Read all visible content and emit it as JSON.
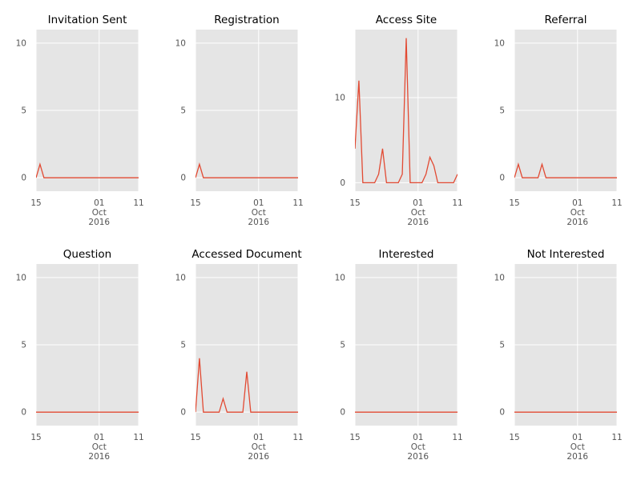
{
  "chart_data": [
    {
      "type": "line",
      "title": "Invitation Sent",
      "color": "#E24A33",
      "background": "#E5E5E5",
      "grid": true,
      "x": [
        "2016-09-15",
        "2016-09-16",
        "2016-09-17",
        "2016-09-18",
        "2016-09-19",
        "2016-09-20",
        "2016-09-21",
        "2016-09-22",
        "2016-09-23",
        "2016-09-24",
        "2016-09-25",
        "2016-09-26",
        "2016-09-27",
        "2016-09-28",
        "2016-09-29",
        "2016-09-30",
        "2016-10-01",
        "2016-10-02",
        "2016-10-03",
        "2016-10-04",
        "2016-10-05",
        "2016-10-06",
        "2016-10-07",
        "2016-10-08",
        "2016-10-09",
        "2016-10-10",
        "2016-10-11"
      ],
      "values": [
        0,
        1,
        0,
        0,
        0,
        0,
        0,
        0,
        0,
        0,
        0,
        0,
        0,
        0,
        0,
        0,
        0,
        0,
        0,
        0,
        0,
        0,
        0,
        0,
        0,
        0,
        0
      ],
      "xlim": [
        "2016-09-15",
        "2016-10-11"
      ],
      "ylim": [
        -1,
        11
      ],
      "yticks": [
        0,
        5,
        10
      ],
      "xtick_labels": [
        {
          "date": "2016-09-15",
          "lines": [
            "15"
          ]
        },
        {
          "date": "2016-10-01",
          "lines": [
            "01",
            "Oct",
            "2016"
          ]
        },
        {
          "date": "2016-10-11",
          "lines": [
            "11"
          ]
        }
      ]
    },
    {
      "type": "line",
      "title": "Registration",
      "color": "#E24A33",
      "background": "#E5E5E5",
      "grid": true,
      "x": [
        "2016-09-15",
        "2016-09-16",
        "2016-09-17",
        "2016-09-18",
        "2016-09-19",
        "2016-09-20",
        "2016-09-21",
        "2016-09-22",
        "2016-09-23",
        "2016-09-24",
        "2016-09-25",
        "2016-09-26",
        "2016-09-27",
        "2016-09-28",
        "2016-09-29",
        "2016-09-30",
        "2016-10-01",
        "2016-10-02",
        "2016-10-03",
        "2016-10-04",
        "2016-10-05",
        "2016-10-06",
        "2016-10-07",
        "2016-10-08",
        "2016-10-09",
        "2016-10-10",
        "2016-10-11"
      ],
      "values": [
        0,
        1,
        0,
        0,
        0,
        0,
        0,
        0,
        0,
        0,
        0,
        0,
        0,
        0,
        0,
        0,
        0,
        0,
        0,
        0,
        0,
        0,
        0,
        0,
        0,
        0,
        0
      ],
      "xlim": [
        "2016-09-15",
        "2016-10-11"
      ],
      "ylim": [
        -1,
        11
      ],
      "yticks": [
        0,
        5,
        10
      ],
      "xtick_labels": [
        {
          "date": "2016-09-15",
          "lines": [
            "15"
          ]
        },
        {
          "date": "2016-10-01",
          "lines": [
            "01",
            "Oct",
            "2016"
          ]
        },
        {
          "date": "2016-10-11",
          "lines": [
            "11"
          ]
        }
      ]
    },
    {
      "type": "line",
      "title": "Access Site",
      "color": "#E24A33",
      "background": "#E5E5E5",
      "grid": true,
      "x": [
        "2016-09-15",
        "2016-09-16",
        "2016-09-17",
        "2016-09-18",
        "2016-09-19",
        "2016-09-20",
        "2016-09-21",
        "2016-09-22",
        "2016-09-23",
        "2016-09-24",
        "2016-09-25",
        "2016-09-26",
        "2016-09-27",
        "2016-09-28",
        "2016-09-29",
        "2016-09-30",
        "2016-10-01",
        "2016-10-02",
        "2016-10-03",
        "2016-10-04",
        "2016-10-05",
        "2016-10-06",
        "2016-10-07",
        "2016-10-08",
        "2016-10-09",
        "2016-10-10",
        "2016-10-11"
      ],
      "values": [
        4,
        12,
        0,
        0,
        0,
        0,
        1,
        4,
        0,
        0,
        0,
        0,
        1,
        17,
        0,
        0,
        0,
        0,
        1,
        3,
        2,
        0,
        0,
        0,
        0,
        0,
        1
      ],
      "xlim": [
        "2016-09-15",
        "2016-10-11"
      ],
      "ylim": [
        -1,
        18
      ],
      "yticks": [
        0,
        10
      ],
      "xtick_labels": [
        {
          "date": "2016-09-15",
          "lines": [
            "15"
          ]
        },
        {
          "date": "2016-10-01",
          "lines": [
            "01",
            "Oct",
            "2016"
          ]
        },
        {
          "date": "2016-10-11",
          "lines": [
            "11"
          ]
        }
      ]
    },
    {
      "type": "line",
      "title": "Referral",
      "color": "#E24A33",
      "background": "#E5E5E5",
      "grid": true,
      "x": [
        "2016-09-15",
        "2016-09-16",
        "2016-09-17",
        "2016-09-18",
        "2016-09-19",
        "2016-09-20",
        "2016-09-21",
        "2016-09-22",
        "2016-09-23",
        "2016-09-24",
        "2016-09-25",
        "2016-09-26",
        "2016-09-27",
        "2016-09-28",
        "2016-09-29",
        "2016-09-30",
        "2016-10-01",
        "2016-10-02",
        "2016-10-03",
        "2016-10-04",
        "2016-10-05",
        "2016-10-06",
        "2016-10-07",
        "2016-10-08",
        "2016-10-09",
        "2016-10-10",
        "2016-10-11"
      ],
      "values": [
        0,
        1,
        0,
        0,
        0,
        0,
        0,
        1,
        0,
        0,
        0,
        0,
        0,
        0,
        0,
        0,
        0,
        0,
        0,
        0,
        0,
        0,
        0,
        0,
        0,
        0,
        0
      ],
      "xlim": [
        "2016-09-15",
        "2016-10-11"
      ],
      "ylim": [
        -1,
        11
      ],
      "yticks": [
        0,
        5,
        10
      ],
      "xtick_labels": [
        {
          "date": "2016-09-15",
          "lines": [
            "15"
          ]
        },
        {
          "date": "2016-10-01",
          "lines": [
            "01",
            "Oct",
            "2016"
          ]
        },
        {
          "date": "2016-10-11",
          "lines": [
            "11"
          ]
        }
      ]
    },
    {
      "type": "line",
      "title": "Question",
      "color": "#E24A33",
      "background": "#E5E5E5",
      "grid": true,
      "x": [
        "2016-09-15",
        "2016-09-16",
        "2016-09-17",
        "2016-09-18",
        "2016-09-19",
        "2016-09-20",
        "2016-09-21",
        "2016-09-22",
        "2016-09-23",
        "2016-09-24",
        "2016-09-25",
        "2016-09-26",
        "2016-09-27",
        "2016-09-28",
        "2016-09-29",
        "2016-09-30",
        "2016-10-01",
        "2016-10-02",
        "2016-10-03",
        "2016-10-04",
        "2016-10-05",
        "2016-10-06",
        "2016-10-07",
        "2016-10-08",
        "2016-10-09",
        "2016-10-10",
        "2016-10-11"
      ],
      "values": [
        0,
        0,
        0,
        0,
        0,
        0,
        0,
        0,
        0,
        0,
        0,
        0,
        0,
        0,
        0,
        0,
        0,
        0,
        0,
        0,
        0,
        0,
        0,
        0,
        0,
        0,
        0
      ],
      "xlim": [
        "2016-09-15",
        "2016-10-11"
      ],
      "ylim": [
        -1,
        11
      ],
      "yticks": [
        0,
        5,
        10
      ],
      "xtick_labels": [
        {
          "date": "2016-09-15",
          "lines": [
            "15"
          ]
        },
        {
          "date": "2016-10-01",
          "lines": [
            "01",
            "Oct",
            "2016"
          ]
        },
        {
          "date": "2016-10-11",
          "lines": [
            "11"
          ]
        }
      ]
    },
    {
      "type": "line",
      "title": "Accessed Document",
      "color": "#E24A33",
      "background": "#E5E5E5",
      "grid": true,
      "x": [
        "2016-09-15",
        "2016-09-16",
        "2016-09-17",
        "2016-09-18",
        "2016-09-19",
        "2016-09-20",
        "2016-09-21",
        "2016-09-22",
        "2016-09-23",
        "2016-09-24",
        "2016-09-25",
        "2016-09-26",
        "2016-09-27",
        "2016-09-28",
        "2016-09-29",
        "2016-09-30",
        "2016-10-01",
        "2016-10-02",
        "2016-10-03",
        "2016-10-04",
        "2016-10-05",
        "2016-10-06",
        "2016-10-07",
        "2016-10-08",
        "2016-10-09",
        "2016-10-10",
        "2016-10-11"
      ],
      "values": [
        0,
        4,
        0,
        0,
        0,
        0,
        0,
        1,
        0,
        0,
        0,
        0,
        0,
        3,
        0,
        0,
        0,
        0,
        0,
        0,
        0,
        0,
        0,
        0,
        0,
        0,
        0
      ],
      "xlim": [
        "2016-09-15",
        "2016-10-11"
      ],
      "ylim": [
        -1,
        11
      ],
      "yticks": [
        0,
        5,
        10
      ],
      "xtick_labels": [
        {
          "date": "2016-09-15",
          "lines": [
            "15"
          ]
        },
        {
          "date": "2016-10-01",
          "lines": [
            "01",
            "Oct",
            "2016"
          ]
        },
        {
          "date": "2016-10-11",
          "lines": [
            "11"
          ]
        }
      ]
    },
    {
      "type": "line",
      "title": "Interested",
      "color": "#E24A33",
      "background": "#E5E5E5",
      "grid": true,
      "x": [
        "2016-09-15",
        "2016-09-16",
        "2016-09-17",
        "2016-09-18",
        "2016-09-19",
        "2016-09-20",
        "2016-09-21",
        "2016-09-22",
        "2016-09-23",
        "2016-09-24",
        "2016-09-25",
        "2016-09-26",
        "2016-09-27",
        "2016-09-28",
        "2016-09-29",
        "2016-09-30",
        "2016-10-01",
        "2016-10-02",
        "2016-10-03",
        "2016-10-04",
        "2016-10-05",
        "2016-10-06",
        "2016-10-07",
        "2016-10-08",
        "2016-10-09",
        "2016-10-10",
        "2016-10-11"
      ],
      "values": [
        0,
        0,
        0,
        0,
        0,
        0,
        0,
        0,
        0,
        0,
        0,
        0,
        0,
        0,
        0,
        0,
        0,
        0,
        0,
        0,
        0,
        0,
        0,
        0,
        0,
        0,
        0
      ],
      "xlim": [
        "2016-09-15",
        "2016-10-11"
      ],
      "ylim": [
        -1,
        11
      ],
      "yticks": [
        0,
        5,
        10
      ],
      "xtick_labels": [
        {
          "date": "2016-09-15",
          "lines": [
            "15"
          ]
        },
        {
          "date": "2016-10-01",
          "lines": [
            "01",
            "Oct",
            "2016"
          ]
        },
        {
          "date": "2016-10-11",
          "lines": [
            "11"
          ]
        }
      ]
    },
    {
      "type": "line",
      "title": "Not Interested",
      "color": "#E24A33",
      "background": "#E5E5E5",
      "grid": true,
      "x": [
        "2016-09-15",
        "2016-09-16",
        "2016-09-17",
        "2016-09-18",
        "2016-09-19",
        "2016-09-20",
        "2016-09-21",
        "2016-09-22",
        "2016-09-23",
        "2016-09-24",
        "2016-09-25",
        "2016-09-26",
        "2016-09-27",
        "2016-09-28",
        "2016-09-29",
        "2016-09-30",
        "2016-10-01",
        "2016-10-02",
        "2016-10-03",
        "2016-10-04",
        "2016-10-05",
        "2016-10-06",
        "2016-10-07",
        "2016-10-08",
        "2016-10-09",
        "2016-10-10",
        "2016-10-11"
      ],
      "values": [
        0,
        0,
        0,
        0,
        0,
        0,
        0,
        0,
        0,
        0,
        0,
        0,
        0,
        0,
        0,
        0,
        0,
        0,
        0,
        0,
        0,
        0,
        0,
        0,
        0,
        0,
        0
      ],
      "xlim": [
        "2016-09-15",
        "2016-10-11"
      ],
      "ylim": [
        -1,
        11
      ],
      "yticks": [
        0,
        5,
        10
      ],
      "xtick_labels": [
        {
          "date": "2016-09-15",
          "lines": [
            "15"
          ]
        },
        {
          "date": "2016-10-01",
          "lines": [
            "01",
            "Oct",
            "2016"
          ]
        },
        {
          "date": "2016-10-11",
          "lines": [
            "11"
          ]
        }
      ]
    }
  ]
}
